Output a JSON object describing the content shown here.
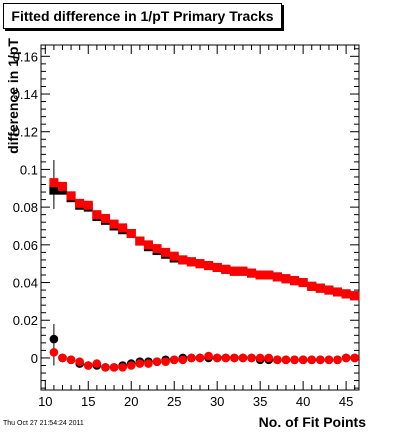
{
  "chart_data": {
    "type": "scatter",
    "title": "Fitted difference in 1/pT Primary Tracks",
    "xlabel": "No. of Fit Points",
    "ylabel": "difference in 1/pT",
    "xlim": [
      9.5,
      46.5
    ],
    "ylim": [
      -0.017,
      0.166
    ],
    "xticks": [
      10,
      15,
      20,
      25,
      30,
      35,
      40,
      45
    ],
    "yticks": [
      0,
      0.02,
      0.04,
      0.06,
      0.08,
      0.1,
      0.12,
      0.14,
      0.16
    ],
    "ytick_labels": [
      "0",
      "0.02",
      "0.04",
      "0.06",
      "0.08",
      "0.1",
      "0.12",
      "0.14",
      "0.16"
    ],
    "grid": false,
    "x": [
      11,
      12,
      13,
      14,
      15,
      16,
      17,
      18,
      19,
      20,
      21,
      22,
      23,
      24,
      25,
      26,
      27,
      28,
      29,
      30,
      31,
      32,
      33,
      34,
      35,
      36,
      37,
      38,
      39,
      40,
      41,
      42,
      43,
      44,
      45,
      46
    ],
    "series": [
      {
        "color": "#000000",
        "marker": "square",
        "values": [
          0.089,
          0.089,
          0.085,
          0.081,
          0.08,
          0.075,
          0.073,
          0.07,
          0.068,
          0.066,
          0.062,
          0.059,
          0.057,
          0.055,
          0.053,
          0.052,
          0.051,
          0.05,
          0.049,
          0.048,
          0.047,
          0.046,
          0.046,
          0.045,
          0.044,
          0.044,
          0.043,
          0.042,
          0.041,
          0.04,
          0.038,
          0.037,
          0.036,
          0.035,
          0.034,
          0.033
        ]
      },
      {
        "color": "#ff0000",
        "marker": "square",
        "values": [
          0.093,
          0.091,
          0.086,
          0.082,
          0.081,
          0.076,
          0.074,
          0.071,
          0.069,
          0.066,
          0.062,
          0.06,
          0.058,
          0.056,
          0.054,
          0.052,
          0.051,
          0.05,
          0.049,
          0.048,
          0.047,
          0.046,
          0.046,
          0.045,
          0.044,
          0.044,
          0.043,
          0.042,
          0.041,
          0.04,
          0.038,
          0.037,
          0.036,
          0.035,
          0.034,
          0.033
        ]
      },
      {
        "color": "#000000",
        "marker": "circle",
        "values": [
          0.01,
          0.0,
          -0.001,
          -0.003,
          -0.004,
          -0.004,
          -0.005,
          -0.005,
          -0.004,
          -0.003,
          -0.002,
          -0.002,
          -0.002,
          -0.001,
          -0.001,
          0.0,
          0.0,
          0.0,
          0.0,
          0.0,
          0.0,
          0.0,
          0.0,
          0.0,
          -0.001,
          -0.001,
          -0.001,
          -0.001,
          -0.001,
          -0.001,
          -0.001,
          -0.001,
          -0.001,
          -0.001,
          0.0,
          0.0
        ]
      },
      {
        "color": "#ff0000",
        "marker": "circle",
        "values": [
          0.003,
          0.0,
          -0.001,
          -0.002,
          -0.004,
          -0.003,
          -0.005,
          -0.005,
          -0.005,
          -0.004,
          -0.003,
          -0.003,
          -0.002,
          -0.002,
          -0.001,
          -0.001,
          0.0,
          0.0,
          0.001,
          0.0,
          0.0,
          0.0,
          0.0,
          0.0,
          0.0,
          0.0,
          -0.001,
          -0.001,
          -0.001,
          -0.001,
          -0.001,
          -0.001,
          -0.001,
          -0.001,
          0.0,
          0.0
        ]
      }
    ]
  },
  "footer": {
    "timestamp": "Thu Oct 27 21:54:24 2011"
  }
}
